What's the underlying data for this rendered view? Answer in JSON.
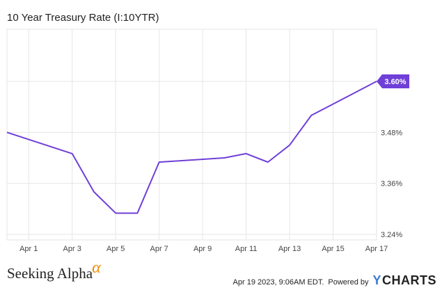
{
  "title": "10 Year Treasury Rate (I:10YTR)",
  "footer": {
    "brand_text": "Seeking Alpha",
    "brand_alpha": "α",
    "timestamp": "Apr 19 2023, 9:06AM EDT.",
    "powered_by": "Powered by",
    "ycharts_y": "Y",
    "ycharts_rest": "CHARTS"
  },
  "colors": {
    "line": "#6f3fd8",
    "grid": "#e6e6e6",
    "text": "#444444",
    "label_bg": "#6f3fd8"
  },
  "chart_data": {
    "type": "line",
    "title": "10 Year Treasury Rate (I:10YTR)",
    "xlabel": "",
    "ylabel": "",
    "x_ticks": [
      "Apr 1",
      "Apr 3",
      "Apr 5",
      "Apr 7",
      "Apr 9",
      "Apr 11",
      "Apr 13",
      "Apr 15",
      "Apr 17"
    ],
    "y_ticks": [
      "3.24%",
      "3.36%",
      "3.48%",
      "3.60%"
    ],
    "ylim": [
      3.24,
      3.6
    ],
    "grid": true,
    "last_value_label": "3.60%",
    "series": [
      {
        "points": [
          {
            "x": "Mar 31",
            "y": 3.48
          },
          {
            "x": "Apr 3",
            "y": 3.43
          },
          {
            "x": "Apr 4",
            "y": 3.34
          },
          {
            "x": "Apr 5",
            "y": 3.29
          },
          {
            "x": "Apr 6",
            "y": 3.29
          },
          {
            "x": "Apr 7",
            "y": 3.41
          },
          {
            "x": "Apr 10",
            "y": 3.42
          },
          {
            "x": "Apr 11",
            "y": 3.43
          },
          {
            "x": "Apr 12",
            "y": 3.41
          },
          {
            "x": "Apr 13",
            "y": 3.45
          },
          {
            "x": "Apr 14",
            "y": 3.52
          },
          {
            "x": "Apr 17",
            "y": 3.6
          }
        ]
      }
    ]
  }
}
